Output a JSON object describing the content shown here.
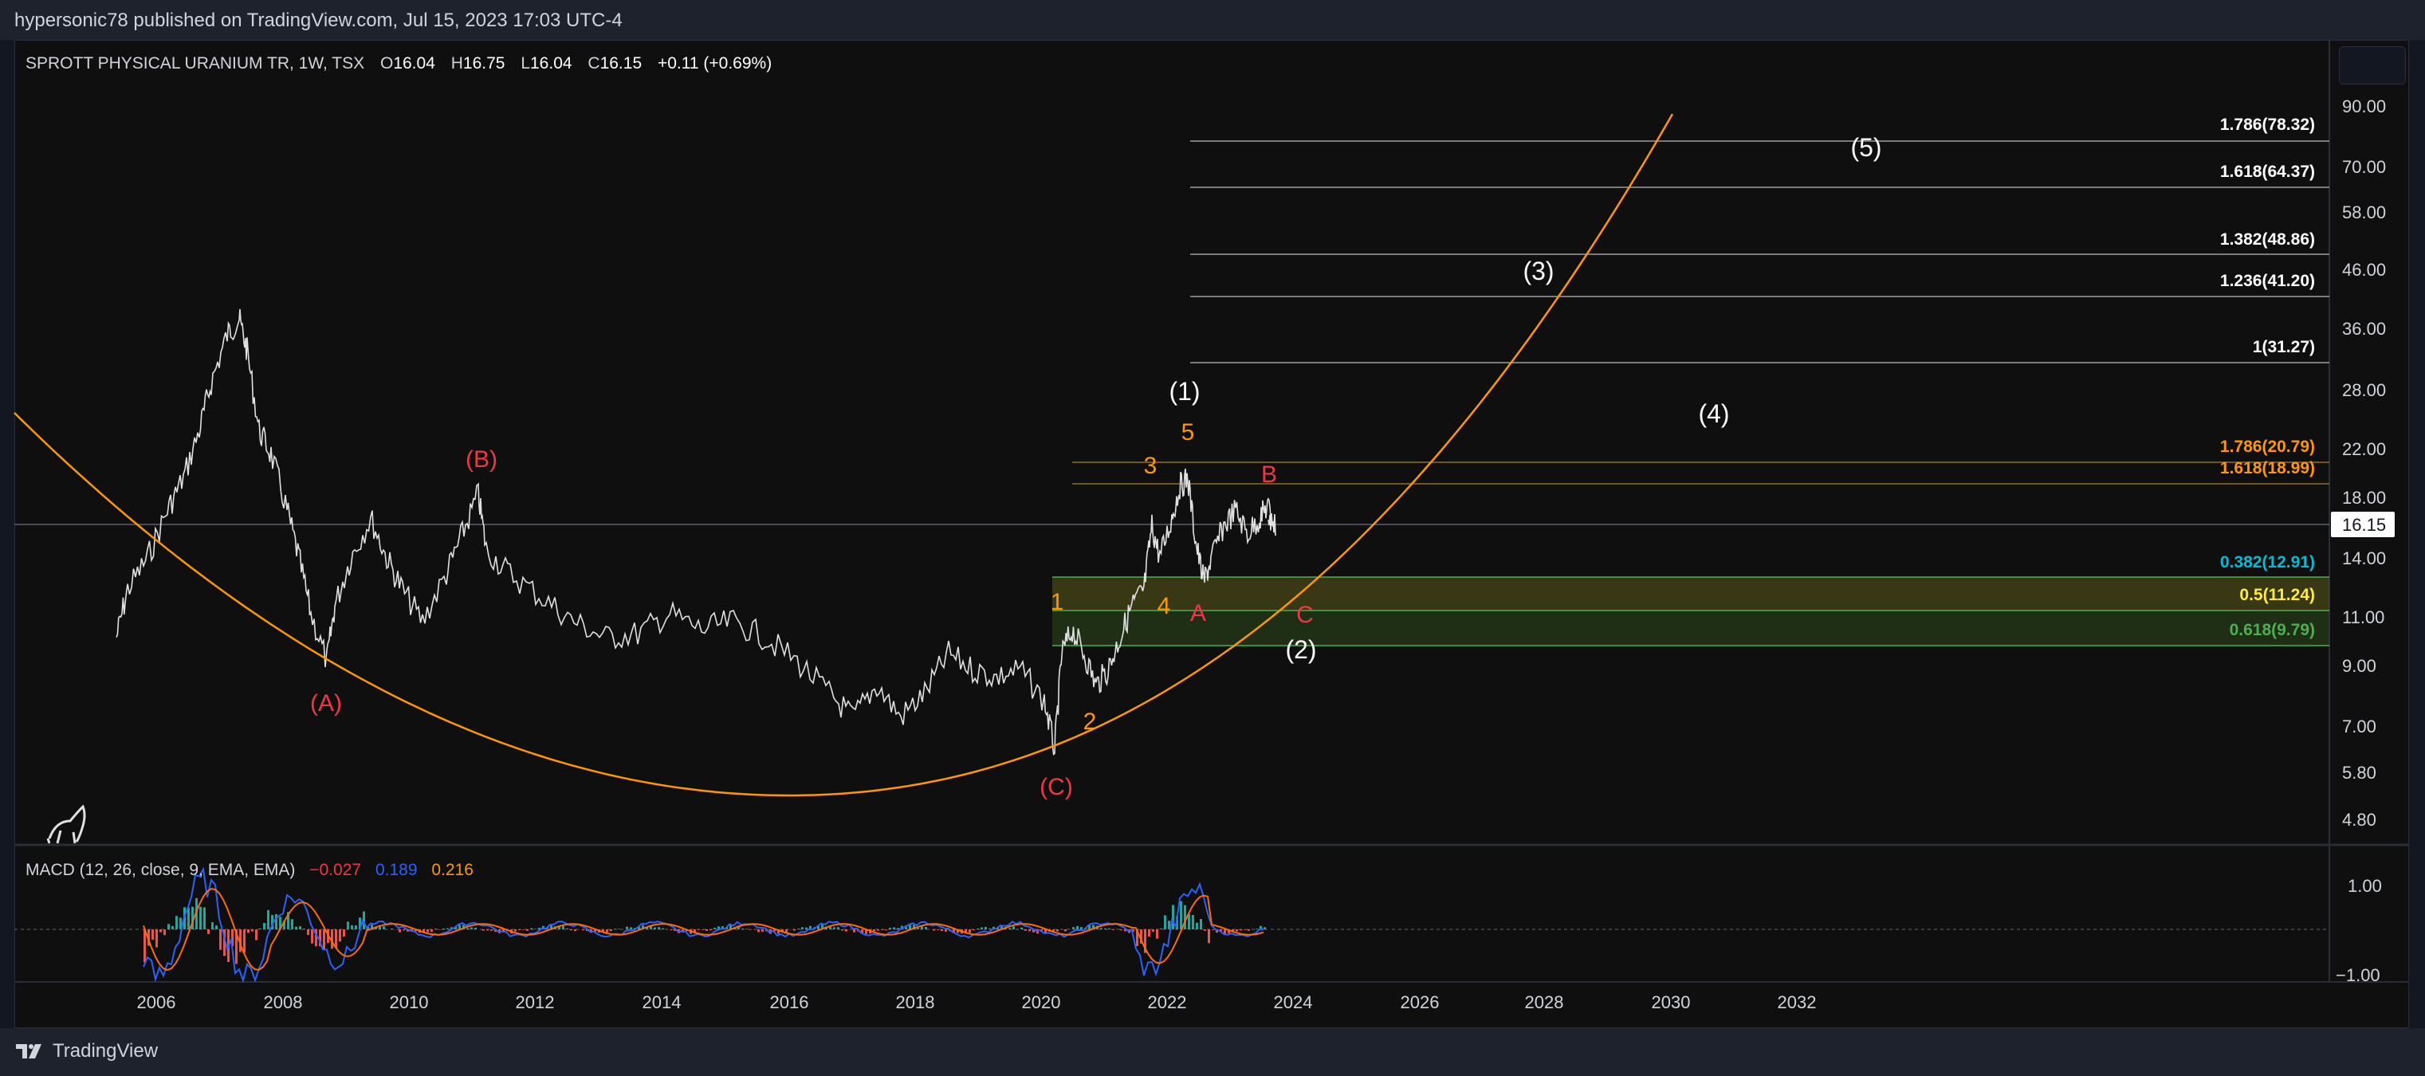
{
  "header": {
    "publisher_text": "hypersonic78 published on TradingView.com, Jul 15, 2023 17:03 UTC-4"
  },
  "legend": {
    "symbol": "SPROTT PHYSICAL URANIUM TR, 1W, TSX",
    "open_label": "O",
    "open": "16.04",
    "high_label": "H",
    "high": "16.75",
    "low_label": "L",
    "low": "16.04",
    "close_label": "C",
    "close": "16.15",
    "change": "+0.11 (+0.69%)"
  },
  "price_axis": {
    "ticks": [
      "90.00",
      "70.00",
      "58.00",
      "46.00",
      "36.00",
      "28.00",
      "22.00",
      "18.00",
      "14.00",
      "11.00",
      "9.00",
      "7.00",
      "5.80",
      "4.80"
    ],
    "current_price": "16.15"
  },
  "macd_axis": {
    "ticks": [
      "1.00",
      "−1.00"
    ]
  },
  "time_axis": {
    "ticks": [
      "2006",
      "2008",
      "2010",
      "2012",
      "2014",
      "2016",
      "2018",
      "2020",
      "2022",
      "2024",
      "2026",
      "2028",
      "2030",
      "2032"
    ]
  },
  "fib_levels": [
    {
      "label": "1.786(78.32)",
      "color": "#ffffff"
    },
    {
      "label": "1.618(64.37)",
      "color": "#ffffff"
    },
    {
      "label": "1.382(48.86)",
      "color": "#ffffff"
    },
    {
      "label": "1.236(41.20)",
      "color": "#ffffff"
    },
    {
      "label": "1(31.27)",
      "color": "#ffffff"
    },
    {
      "label": "1.786(20.79)",
      "color": "#ff9800"
    },
    {
      "label": "1.618(18.99)",
      "color": "#ff9800"
    },
    {
      "label": "0.382(12.91)",
      "color": "#00bcd4"
    },
    {
      "label": "0.5(11.24)",
      "color": "#ffeb3b"
    },
    {
      "label": "0.618(9.79)",
      "color": "#4caf50"
    }
  ],
  "wave_labels": {
    "primary": [
      "(1)",
      "(2)",
      "(3)",
      "(4)",
      "(5)"
    ],
    "intermediate": [
      "1",
      "2",
      "3",
      "4",
      "5"
    ],
    "corrective_red": [
      "(A)",
      "(B)",
      "(C)",
      "A",
      "B",
      "C"
    ]
  },
  "macd_legend": {
    "title": "MACD (12, 26, close, 9, EMA, EMA)",
    "histogram": "−0.027",
    "macd": "0.189",
    "signal": "0.216"
  },
  "footer": {
    "brand": "TradingView"
  },
  "colors": {
    "background": "#0f0f0f",
    "price_line": "#e0e0e0",
    "arc": "#ff9800",
    "wave_white": "#ffffff",
    "wave_orange": "#ff9800",
    "wave_red": "#f23645",
    "macd_line": "#2962ff",
    "signal_line": "#ff6d00",
    "hist_pos": "#26a69a",
    "hist_neg": "#ef5350"
  }
}
